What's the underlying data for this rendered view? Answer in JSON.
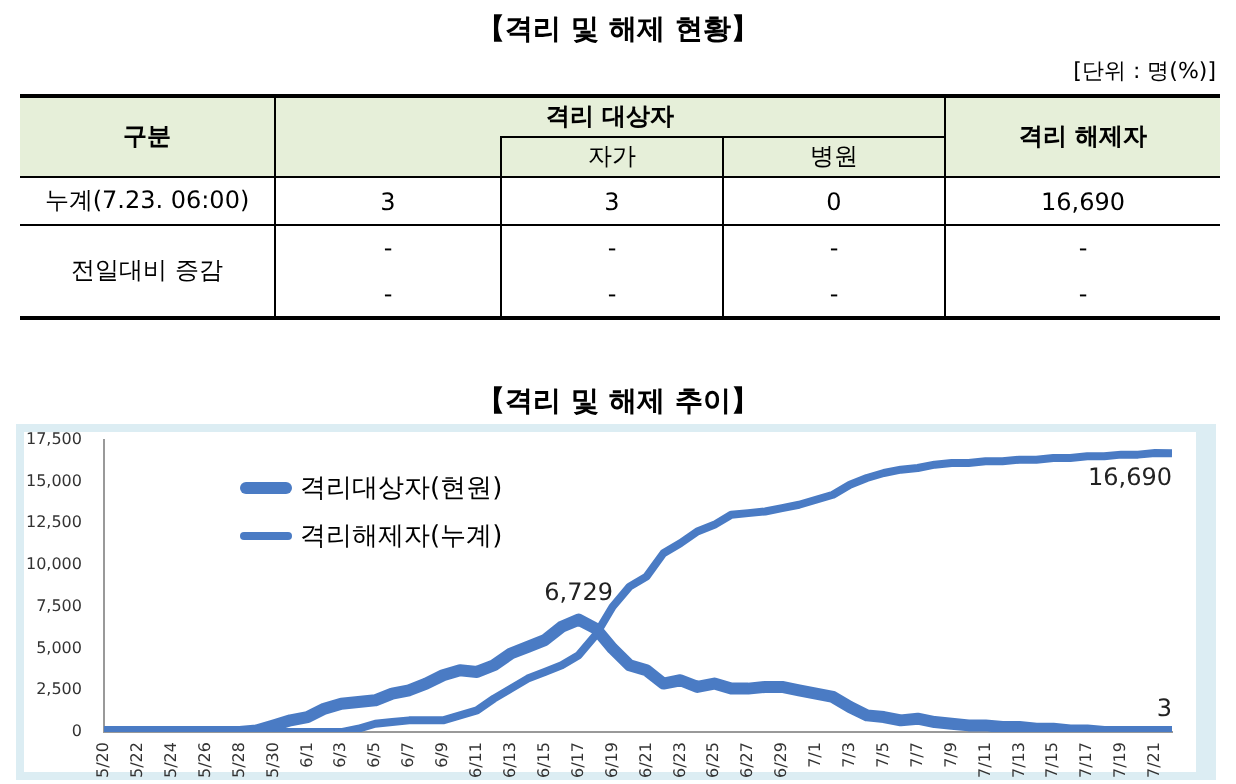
{
  "chart_data": [
    {
      "type": "other",
      "title": "【격리 및 해제 현황】",
      "annotations": [
        "[단위 : 명(%)]",
        "구분",
        "격리 대상자",
        "자가",
        "병원",
        "격리 해제자",
        "누계(7.23. 06:00)",
        "3",
        "3",
        "0",
        "16,690",
        "전일대비 증감",
        "-",
        "-",
        "-",
        "-",
        "-",
        "-",
        "-",
        "-"
      ]
    },
    {
      "type": "line",
      "title": "【격리 및 해제 추이】",
      "categories": [
        "5/20",
        null,
        "5/22",
        null,
        "5/24",
        null,
        "5/26",
        null,
        "5/28",
        null,
        "5/30",
        null,
        "6/1",
        null,
        "6/3",
        null,
        "6/5",
        null,
        "6/7",
        null,
        "6/9",
        null,
        "6/11",
        null,
        "6/13",
        null,
        "6/15",
        null,
        "6/17",
        null,
        "6/19",
        null,
        "6/21",
        null,
        "6/23",
        null,
        "6/25",
        null,
        "6/27",
        null,
        "6/29",
        null,
        "7/1",
        null,
        "7/3",
        null,
        "7/5",
        null,
        "7/7",
        null,
        "7/9",
        null,
        "7/11",
        null,
        "7/13",
        null,
        "7/15",
        null,
        "7/17",
        null,
        "7/19",
        null,
        "7/21",
        null
      ],
      "series": [
        {
          "name": "격리대상자(현원)",
          "color": "#4a7bc4",
          "values": [
            0,
            0,
            0,
            0,
            0,
            0,
            0,
            0,
            0,
            100,
            400,
            700,
            900,
            1400,
            1700,
            1800,
            1900,
            2300,
            2500,
            2900,
            3400,
            3700,
            3600,
            4000,
            4700,
            5100,
            5500,
            6300,
            6729,
            6200,
            5000,
            4000,
            3700,
            2900,
            3100,
            2700,
            2900,
            2600,
            2600,
            2700,
            2700,
            2500,
            2300,
            2100,
            1500,
            1000,
            900,
            700,
            800,
            600,
            500,
            400,
            400,
            300,
            300,
            200,
            200,
            100,
            100,
            0,
            0,
            0,
            0,
            3
          ],
          "value_labels": [
            null,
            null,
            null,
            null,
            null,
            null,
            null,
            null,
            null,
            null,
            null,
            null,
            null,
            null,
            null,
            null,
            null,
            null,
            null,
            null,
            null,
            null,
            null,
            null,
            null,
            null,
            null,
            null,
            "6,729",
            null,
            null,
            null,
            null,
            null,
            null,
            null,
            null,
            null,
            null,
            null,
            null,
            null,
            null,
            null,
            null,
            null,
            null,
            null,
            null,
            null,
            null,
            null,
            null,
            null,
            null,
            null,
            null,
            null,
            null,
            null,
            null,
            null,
            null,
            "3"
          ]
        },
        {
          "name": "격리해제자(누계)",
          "color": "#4a7bc4",
          "values": [
            0,
            0,
            0,
            0,
            0,
            0,
            0,
            0,
            0,
            0,
            0,
            0,
            0,
            0,
            0,
            200,
            500,
            600,
            700,
            700,
            700,
            1000,
            1300,
            2000,
            2600,
            3200,
            3600,
            4000,
            4600,
            5800,
            7500,
            8700,
            9300,
            10700,
            11300,
            12000,
            12400,
            13000,
            13100,
            13200,
            13400,
            13600,
            13900,
            14200,
            14800,
            15200,
            15500,
            15700,
            15800,
            16000,
            16100,
            16100,
            16200,
            16200,
            16300,
            16300,
            16400,
            16400,
            16500,
            16500,
            16600,
            16600,
            16700,
            16690
          ],
          "value_labels": [
            null,
            null,
            null,
            null,
            null,
            null,
            null,
            null,
            null,
            null,
            null,
            null,
            null,
            null,
            null,
            null,
            null,
            null,
            null,
            null,
            null,
            null,
            null,
            null,
            null,
            null,
            null,
            null,
            null,
            null,
            null,
            null,
            null,
            null,
            null,
            null,
            null,
            null,
            null,
            null,
            null,
            null,
            null,
            null,
            null,
            null,
            null,
            null,
            null,
            null,
            null,
            null,
            null,
            null,
            null,
            null,
            null,
            null,
            null,
            null,
            null,
            null,
            null,
            "16,690"
          ]
        }
      ],
      "ylim": [
        0,
        17500
      ],
      "yticks": [
        0,
        {
          "value": 2500,
          "label": "2,500"
        },
        {
          "value": 5000,
          "label": "5,000"
        },
        {
          "value": 7500,
          "label": "7,500"
        },
        {
          "value": 10000,
          "label": "10,000"
        },
        {
          "value": 12500,
          "label": "12,500"
        },
        {
          "value": 15000,
          "label": "15,000"
        },
        {
          "value": 17500,
          "label": "17,500"
        }
      ],
      "grid": false,
      "legend": "top left",
      "marker": "none",
      "line_style": "solid"
    }
  ]
}
